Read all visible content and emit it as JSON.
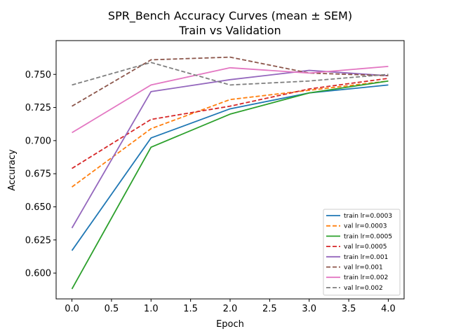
{
  "chart_data": {
    "type": "line",
    "title": "SPR_Bench Accuracy Curves (mean ± SEM)",
    "subtitle": "Train vs Validation",
    "xlabel": "Epoch",
    "ylabel": "Accuracy",
    "xlim": [
      -0.2,
      4.2
    ],
    "ylim": [
      0.5805,
      0.7755
    ],
    "xticks": [
      0.0,
      0.5,
      1.0,
      1.5,
      2.0,
      2.5,
      3.0,
      3.5,
      4.0
    ],
    "xtick_labels": [
      "0.0",
      "0.5",
      "1.0",
      "1.5",
      "2.0",
      "2.5",
      "3.0",
      "3.5",
      "4.0"
    ],
    "yticks": [
      0.6,
      0.625,
      0.65,
      0.675,
      0.7,
      0.725,
      0.75
    ],
    "ytick_labels": [
      "0.600",
      "0.625",
      "0.650",
      "0.675",
      "0.700",
      "0.725",
      "0.750"
    ],
    "grid": false,
    "legend_position": "lower-right",
    "x": [
      0,
      1,
      2,
      3,
      4
    ],
    "series": [
      {
        "name": "train lr=0.0003",
        "color": "#1f77b4",
        "dash": "solid",
        "values": [
          0.617,
          0.702,
          0.724,
          0.736,
          0.742
        ]
      },
      {
        "name": "val lr=0.0003",
        "color": "#ff7f0e",
        "dash": "dashed",
        "values": [
          0.665,
          0.709,
          0.731,
          0.738,
          0.745
        ]
      },
      {
        "name": "train lr=0.0005",
        "color": "#2ca02c",
        "dash": "solid",
        "values": [
          0.588,
          0.695,
          0.72,
          0.736,
          0.745
        ]
      },
      {
        "name": "val lr=0.0005",
        "color": "#d62728",
        "dash": "dashed",
        "values": [
          0.679,
          0.716,
          0.726,
          0.739,
          0.747
        ]
      },
      {
        "name": "train lr=0.001",
        "color": "#9467bd",
        "dash": "solid",
        "values": [
          0.634,
          0.737,
          0.746,
          0.753,
          0.749
        ]
      },
      {
        "name": "val lr=0.001",
        "color": "#8c564b",
        "dash": "dashed",
        "values": [
          0.726,
          0.761,
          0.763,
          0.751,
          0.749
        ]
      },
      {
        "name": "train lr=0.002",
        "color": "#e377c2",
        "dash": "solid",
        "values": [
          0.706,
          0.742,
          0.755,
          0.751,
          0.756
        ]
      },
      {
        "name": "val lr=0.002",
        "color": "#7f7f7f",
        "dash": "dashed",
        "values": [
          0.742,
          0.759,
          0.742,
          0.745,
          0.75
        ]
      }
    ]
  }
}
